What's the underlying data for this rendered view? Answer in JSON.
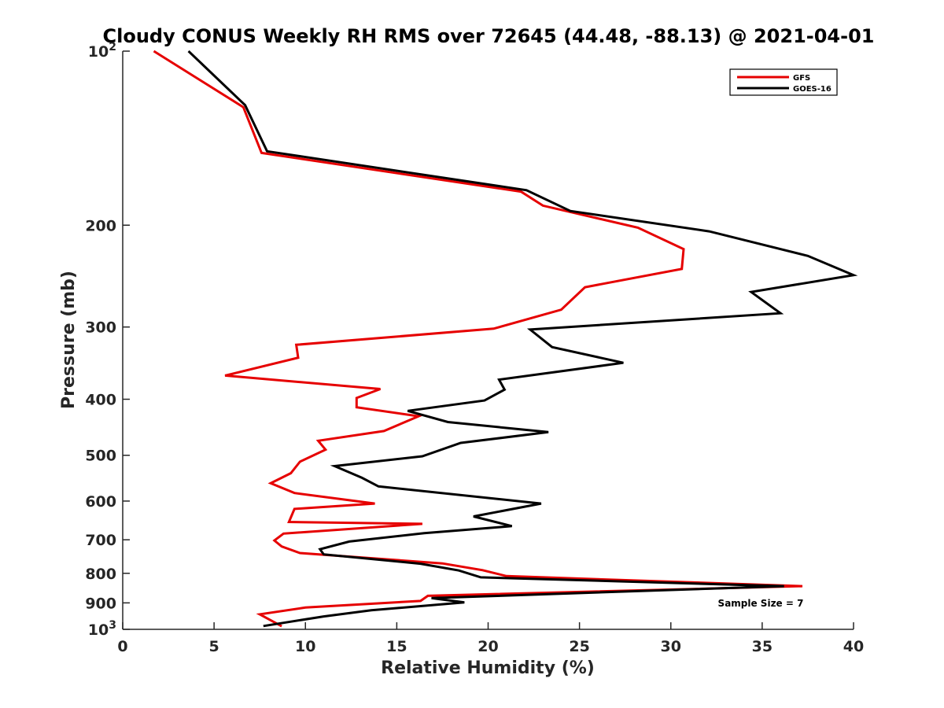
{
  "chart_data": {
    "type": "line",
    "title": "Cloudy CONUS Weekly RH RMS over 72645 (44.48, -88.13) @ 2021-04-01",
    "xlabel": "Relative Humidity (%)",
    "ylabel": "Pressure (mb)",
    "xlim": [
      0,
      40
    ],
    "ylim": [
      100,
      1000
    ],
    "yscale": "log",
    "y_reversed": true,
    "x_ticks": [
      "0",
      "5",
      "10",
      "15",
      "20",
      "25",
      "30",
      "35",
      "40"
    ],
    "y_ticks": [
      {
        "value": 100,
        "base": "10",
        "exp": "2"
      },
      {
        "value": 200,
        "label": "200"
      },
      {
        "value": 300,
        "label": "300"
      },
      {
        "value": 400,
        "label": "400"
      },
      {
        "value": 500,
        "label": "500"
      },
      {
        "value": 600,
        "label": "600"
      },
      {
        "value": 700,
        "label": "700"
      },
      {
        "value": 800,
        "label": "800"
      },
      {
        "value": 900,
        "label": "900"
      },
      {
        "value": 1000,
        "base": "10",
        "exp": "3"
      }
    ],
    "legend_position": "top-right",
    "annotation": "Sample Size = 7",
    "series": [
      {
        "name": "GFS",
        "color": "#e60000",
        "points": [
          [
            1.7,
            100
          ],
          [
            6.6,
            125
          ],
          [
            7.6,
            150
          ],
          [
            21.8,
            175
          ],
          [
            23,
            185
          ],
          [
            28.2,
            202
          ],
          [
            30.7,
            220
          ],
          [
            30.6,
            238
          ],
          [
            25.3,
            256
          ],
          [
            24,
            280
          ],
          [
            20.3,
            302
          ],
          [
            9.5,
            322
          ],
          [
            9.6,
            339
          ],
          [
            5.6,
            364
          ],
          [
            14.1,
            384
          ],
          [
            12.8,
            398
          ],
          [
            12.8,
            413
          ],
          [
            16.2,
            428
          ],
          [
            14.3,
            454
          ],
          [
            10.7,
            472
          ],
          [
            11.1,
            489
          ],
          [
            9.7,
            513
          ],
          [
            9.2,
            537
          ],
          [
            8.1,
            559
          ],
          [
            9.4,
            581
          ],
          [
            13.8,
            606
          ],
          [
            9.4,
            619
          ],
          [
            9.1,
            652
          ],
          [
            16.4,
            657
          ],
          [
            8.8,
            683
          ],
          [
            8.3,
            702
          ],
          [
            8.7,
            719
          ],
          [
            9.7,
            738
          ],
          [
            17.5,
            769
          ],
          [
            19.7,
            790
          ],
          [
            21,
            809
          ],
          [
            37.2,
            842
          ],
          [
            16.7,
            875
          ],
          [
            16.3,
            893
          ],
          [
            10,
            917
          ],
          [
            7.5,
            942
          ],
          [
            8.7,
            988
          ]
        ]
      },
      {
        "name": "GOES-16",
        "color": "#000000",
        "points": [
          [
            3.6,
            100
          ],
          [
            6.7,
            124
          ],
          [
            7.9,
            149
          ],
          [
            22.1,
            174
          ],
          [
            24.5,
            189
          ],
          [
            32.1,
            205
          ],
          [
            37.5,
            226
          ],
          [
            40,
            244
          ],
          [
            34.4,
            261
          ],
          [
            36,
            284
          ],
          [
            22.3,
            303
          ],
          [
            23.5,
            325
          ],
          [
            27.4,
            346
          ],
          [
            20.6,
            370
          ],
          [
            20.9,
            385
          ],
          [
            19.8,
            402
          ],
          [
            15.6,
            419
          ],
          [
            17.8,
            438
          ],
          [
            23.3,
            456
          ],
          [
            18.5,
            476
          ],
          [
            16.4,
            502
          ],
          [
            11.6,
            522
          ],
          [
            13.1,
            547
          ],
          [
            14,
            566
          ],
          [
            22.9,
            606
          ],
          [
            19.2,
            638
          ],
          [
            21.3,
            663
          ],
          [
            16.5,
            682
          ],
          [
            12.4,
            705
          ],
          [
            10.8,
            727
          ],
          [
            11,
            742
          ],
          [
            16.3,
            770
          ],
          [
            18.4,
            791
          ],
          [
            19.6,
            813
          ],
          [
            36.2,
            842
          ],
          [
            16.9,
            883
          ],
          [
            18.7,
            898
          ],
          [
            13.6,
            927
          ],
          [
            11,
            950
          ],
          [
            7.7,
            987
          ]
        ]
      }
    ]
  }
}
